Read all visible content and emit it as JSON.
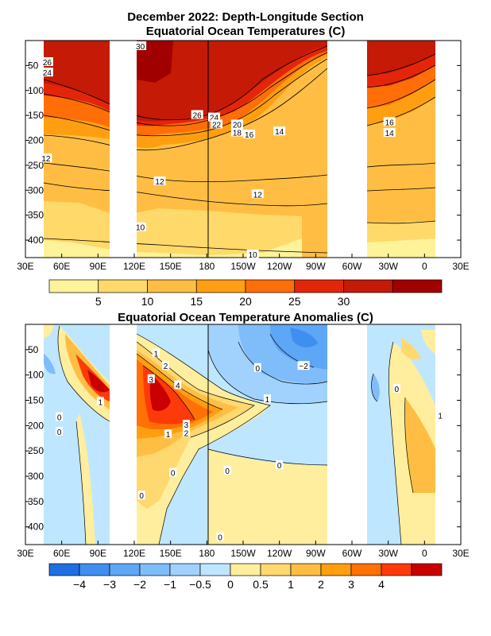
{
  "chart_data": [
    {
      "type": "heatmap",
      "title": "December 2022: Depth-Longitude Section",
      "subtitle": "Equatorial Ocean Temperatures (C)",
      "xlim": [
        30,
        390
      ],
      "ylim": [
        0,
        435
      ],
      "x_ticks": [
        {
          "lon": 30,
          "label": "30E"
        },
        {
          "lon": 60,
          "label": "60E"
        },
        {
          "lon": 90,
          "label": "90E"
        },
        {
          "lon": 120,
          "label": "120E"
        },
        {
          "lon": 150,
          "label": "150E"
        },
        {
          "lon": 180,
          "label": "180"
        },
        {
          "lon": 210,
          "label": "150W"
        },
        {
          "lon": 240,
          "label": "120W"
        },
        {
          "lon": 270,
          "label": "90W"
        },
        {
          "lon": 300,
          "label": "60W"
        },
        {
          "lon": 330,
          "label": "30W"
        },
        {
          "lon": 360,
          "label": "0"
        },
        {
          "lon": 390,
          "label": "30E"
        }
      ],
      "y_ticks": [
        50,
        100,
        150,
        200,
        250,
        300,
        350,
        400
      ],
      "land_gaps": [
        [
          100,
          118
        ],
        [
          279,
          326
        ]
      ],
      "colorbar": {
        "colors": [
          "#fff39a",
          "#ffd96a",
          "#ffbe43",
          "#ff9e10",
          "#ff6e07",
          "#e3260a",
          "#c41a06",
          "#a10000"
        ],
        "labels": [
          {
            "pos": 1,
            "text": "5"
          },
          {
            "pos": 2,
            "text": "10"
          },
          {
            "pos": 3,
            "text": "15"
          },
          {
            "pos": 4,
            "text": "20"
          },
          {
            "pos": 5,
            "text": "25"
          },
          {
            "pos": 6,
            "text": "30"
          }
        ]
      },
      "contour_labels": [
        {
          "text": "30",
          "lon": 125,
          "depth": 5
        },
        {
          "text": "26",
          "lon": 48,
          "depth": 43
        },
        {
          "text": "24",
          "lon": 48,
          "depth": 64
        },
        {
          "text": "26",
          "lon": 172,
          "depth": 149
        },
        {
          "text": "24",
          "lon": 186,
          "depth": 154
        },
        {
          "text": "22",
          "lon": 188,
          "depth": 168
        },
        {
          "text": "20",
          "lon": 205,
          "depth": 168
        },
        {
          "text": "18",
          "lon": 205,
          "depth": 184
        },
        {
          "text": "16",
          "lon": 215,
          "depth": 188
        },
        {
          "text": "14",
          "lon": 240,
          "depth": 182
        },
        {
          "text": "16",
          "lon": 331,
          "depth": 163
        },
        {
          "text": "14",
          "lon": 331,
          "depth": 185
        },
        {
          "text": "12",
          "lon": 47,
          "depth": 236
        },
        {
          "text": "12",
          "lon": 141,
          "depth": 282
        },
        {
          "text": "12",
          "lon": 222,
          "depth": 308
        },
        {
          "text": "10",
          "lon": 125,
          "depth": 374
        },
        {
          "text": "10",
          "lon": 218,
          "depth": 460
        }
      ]
    },
    {
      "type": "heatmap",
      "title": "Equatorial Ocean Temperature Anomalies (C)",
      "xlim": [
        30,
        390
      ],
      "ylim": [
        0,
        435
      ],
      "x_ticks": [
        {
          "lon": 30,
          "label": "30E"
        },
        {
          "lon": 60,
          "label": "60E"
        },
        {
          "lon": 90,
          "label": "90E"
        },
        {
          "lon": 120,
          "label": "120E"
        },
        {
          "lon": 150,
          "label": "150E"
        },
        {
          "lon": 180,
          "label": "180"
        },
        {
          "lon": 210,
          "label": "150W"
        },
        {
          "lon": 240,
          "label": "120W"
        },
        {
          "lon": 270,
          "label": "90W"
        },
        {
          "lon": 300,
          "label": "60W"
        },
        {
          "lon": 330,
          "label": "30W"
        },
        {
          "lon": 360,
          "label": "0"
        },
        {
          "lon": 390,
          "label": "30E"
        }
      ],
      "y_ticks": [
        50,
        100,
        150,
        200,
        250,
        300,
        350,
        400
      ],
      "land_gaps": [
        [
          100,
          118
        ],
        [
          279,
          326
        ]
      ],
      "colorbar": {
        "colors": [
          "#1f6fe3",
          "#3f8ff0",
          "#5ea6f6",
          "#7fbcfa",
          "#a0d2fd",
          "#bfe6ff",
          "#ffee9d",
          "#ffd870",
          "#ffbe43",
          "#ff9e10",
          "#ff7006",
          "#ff3a0a",
          "#c80000"
        ],
        "labels": [
          {
            "pos": 1,
            "text": "−4"
          },
          {
            "pos": 2,
            "text": "−3"
          },
          {
            "pos": 3,
            "text": "−2"
          },
          {
            "pos": 4,
            "text": "−1"
          },
          {
            "pos": 5,
            "text": "−0.5"
          },
          {
            "pos": 6,
            "text": "0"
          },
          {
            "pos": 7,
            "text": "0.5"
          },
          {
            "pos": 8,
            "text": "1"
          },
          {
            "pos": 9,
            "text": "2"
          },
          {
            "pos": 10,
            "text": "3"
          },
          {
            "pos": 11,
            "text": "4"
          }
        ]
      },
      "contour_labels": [
        {
          "text": "1",
          "lon": 138,
          "depth": 57
        },
        {
          "text": "2",
          "lon": 146,
          "depth": 82
        },
        {
          "text": "3",
          "lon": 134,
          "depth": 108
        },
        {
          "text": "4",
          "lon": 156,
          "depth": 120
        },
        {
          "text": "1",
          "lon": 92,
          "depth": 153
        },
        {
          "text": "0",
          "lon": 58,
          "depth": 183
        },
        {
          "text": "0",
          "lon": 58,
          "depth": 212
        },
        {
          "text": "3",
          "lon": 163,
          "depth": 198
        },
        {
          "text": "2",
          "lon": 163,
          "depth": 214
        },
        {
          "text": "1",
          "lon": 148,
          "depth": 217
        },
        {
          "text": "1",
          "lon": 230,
          "depth": 148
        },
        {
          "text": "0",
          "lon": 222,
          "depth": 86
        },
        {
          "text": "−2",
          "lon": 260,
          "depth": 82
        },
        {
          "text": "0",
          "lon": 337,
          "depth": 127
        },
        {
          "text": "1",
          "lon": 373,
          "depth": 180
        },
        {
          "text": "0",
          "lon": 152,
          "depth": 293
        },
        {
          "text": "0",
          "lon": 197,
          "depth": 289
        },
        {
          "text": "0",
          "lon": 240,
          "depth": 278
        },
        {
          "text": "0",
          "lon": 126,
          "depth": 338
        },
        {
          "text": "0",
          "lon": 191,
          "depth": 420
        }
      ]
    }
  ]
}
